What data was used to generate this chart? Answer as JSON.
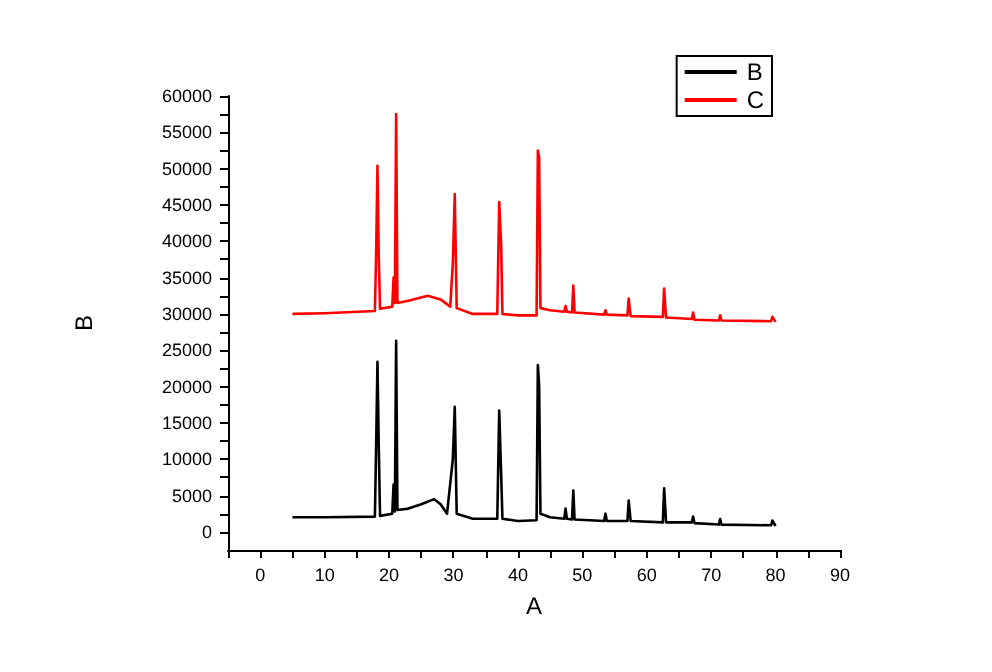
{
  "chart_data": {
    "type": "line",
    "xlabel": "A",
    "ylabel": "B",
    "xlim": [
      -5,
      90
    ],
    "ylim": [
      -2500,
      60000
    ],
    "xticks": [
      {
        "value": -5,
        "label": null
      },
      0,
      {
        "value": 5,
        "label": null
      },
      10,
      {
        "value": 15,
        "label": null
      },
      20,
      {
        "value": 25,
        "label": null
      },
      30,
      {
        "value": 35,
        "label": null
      },
      40,
      {
        "value": 45,
        "label": null
      },
      50,
      {
        "value": 55,
        "label": null
      },
      60,
      {
        "value": 65,
        "label": null
      },
      70,
      {
        "value": 75,
        "label": null
      },
      80,
      {
        "value": 85,
        "label": null
      },
      90
    ],
    "yticks": [
      0,
      {
        "value": 2500,
        "label": null
      },
      5000,
      {
        "value": 7500,
        "label": null
      },
      10000,
      {
        "value": 12500,
        "label": null
      },
      15000,
      {
        "value": 17500,
        "label": null
      },
      20000,
      {
        "value": 22500,
        "label": null
      },
      25000,
      {
        "value": 27500,
        "label": null
      },
      30000,
      {
        "value": 32500,
        "label": null
      },
      35000,
      {
        "value": 37500,
        "label": null
      },
      40000,
      {
        "value": 42500,
        "label": null
      },
      45000,
      {
        "value": 47500,
        "label": null
      },
      50000,
      {
        "value": 52500,
        "label": null
      },
      55000,
      {
        "value": 57500,
        "label": null
      },
      60000
    ],
    "grid": false,
    "legend": "top right",
    "marker": "none",
    "line_style": "solid",
    "series": [
      {
        "name": "B",
        "color": "#000000",
        "x": [
          5,
          10,
          17.8,
          18.0,
          18.2,
          18.4,
          18.6,
          20.5,
          20.7,
          20.9,
          21.1,
          21.3,
          23,
          25,
          27,
          28,
          29,
          29.9,
          30.2,
          30.5,
          33,
          36.8,
          37.1,
          37.4,
          37.6,
          40,
          42.9,
          43.1,
          43.3,
          43.5,
          45,
          47.2,
          47.4,
          47.6,
          48.4,
          48.6,
          48.8,
          53.4,
          53.6,
          53.8,
          57.0,
          57.2,
          57.5,
          62.5,
          62.7,
          63.0,
          67,
          67.2,
          67.4,
          71.2,
          71.4,
          71.6,
          79.3,
          79.5,
          80
        ],
        "values": [
          2000,
          2000,
          2100,
          12000,
          23400,
          12000,
          2200,
          2500,
          6500,
          2800,
          26300,
          3000,
          3200,
          3800,
          4500,
          3800,
          2500,
          10000,
          17200,
          2500,
          1800,
          1800,
          16700,
          8000,
          1800,
          1500,
          1600,
          22950,
          20000,
          2500,
          2000,
          1800,
          3200,
          1800,
          1700,
          5700,
          1700,
          1500,
          2500,
          1500,
          1500,
          4300,
          1500,
          1300,
          6000,
          1300,
          1300,
          2100,
          1200,
          1000,
          1750,
          1000,
          900,
          1550,
          800
        ]
      },
      {
        "name": "C",
        "color": "#ff0000",
        "x": [
          5,
          10,
          17.8,
          18.0,
          18.2,
          18.4,
          18.6,
          20.5,
          20.7,
          20.9,
          21.1,
          21.3,
          23,
          26,
          28,
          29.5,
          29.9,
          30.2,
          30.5,
          33,
          36.8,
          37.1,
          37.4,
          37.6,
          40,
          42.9,
          43.1,
          43.3,
          43.5,
          45,
          47.2,
          47.4,
          47.6,
          48.4,
          48.6,
          48.8,
          53.4,
          53.6,
          53.8,
          57.0,
          57.2,
          57.5,
          62.5,
          62.7,
          63.0,
          67,
          67.2,
          67.4,
          71.2,
          71.4,
          71.6,
          79.3,
          79.5,
          80
        ],
        "values": [
          30000,
          30100,
          30400,
          38500,
          50400,
          38000,
          30700,
          31000,
          35000,
          31500,
          57500,
          31500,
          31800,
          32500,
          32000,
          31000,
          37000,
          46500,
          30800,
          30000,
          30000,
          45400,
          39500,
          30000,
          29800,
          29800,
          52500,
          51500,
          30800,
          30500,
          30300,
          31100,
          30300,
          30200,
          33900,
          30200,
          29900,
          30500,
          29900,
          29800,
          32100,
          29700,
          29600,
          33500,
          29500,
          29300,
          30200,
          29200,
          29100,
          29800,
          29100,
          29000,
          29600,
          28900
        ]
      }
    ]
  }
}
